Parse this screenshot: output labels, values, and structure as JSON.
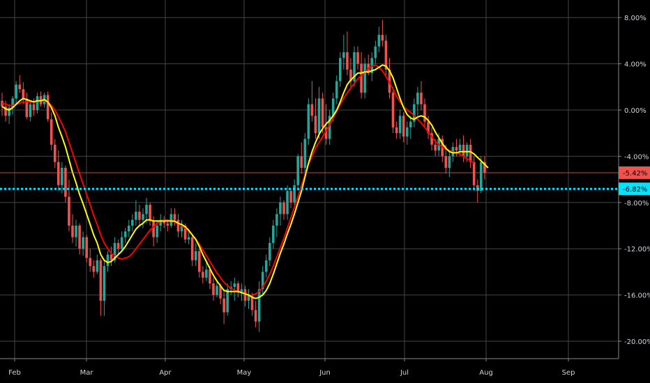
{
  "chart_data": {
    "type": "candlestick",
    "x_ticks": [
      "Feb",
      "Mar",
      "Apr",
      "May",
      "Jun",
      "Jul",
      "Aug",
      "Sep"
    ],
    "y_ticks": [
      "8.00%",
      "4.00%",
      "0.00%",
      "-4.00%",
      "-8.00%",
      "-12.00%",
      "-16.00%",
      "-20.00%"
    ],
    "ylim": [
      -22,
      9
    ],
    "y_unit": "%",
    "grid": true,
    "colors": {
      "up": "#26a69a",
      "down": "#ef5350",
      "ma_fast": "#ffff00",
      "ma_slow": "#ff0000",
      "background": "#000000",
      "grid": "#444444",
      "dotted_line": "#00e5ff",
      "axis_text": "#d1d4dc"
    },
    "candles": [
      {
        "o": 0.8,
        "h": 1.5,
        "l": -0.5,
        "c": 0.3
      },
      {
        "o": 0.3,
        "h": 0.8,
        "l": -1.0,
        "c": -0.5
      },
      {
        "o": -0.5,
        "h": 0.5,
        "l": -1.2,
        "c": 0.2
      },
      {
        "o": 0.2,
        "h": 1.2,
        "l": -0.4,
        "c": 1.0
      },
      {
        "o": 1.0,
        "h": 2.5,
        "l": 0.5,
        "c": 2.2
      },
      {
        "o": 2.2,
        "h": 3.0,
        "l": 1.5,
        "c": 1.8
      },
      {
        "o": 1.8,
        "h": 2.4,
        "l": 0.5,
        "c": 1.0
      },
      {
        "o": 1.0,
        "h": 1.5,
        "l": -0.8,
        "c": -0.6
      },
      {
        "o": -0.6,
        "h": 0.8,
        "l": -1.0,
        "c": 0.5
      },
      {
        "o": 0.5,
        "h": 1.0,
        "l": -0.5,
        "c": 0.0
      },
      {
        "o": 0.0,
        "h": 1.5,
        "l": -0.3,
        "c": 1.2
      },
      {
        "o": 1.2,
        "h": 1.6,
        "l": 0.3,
        "c": 0.5
      },
      {
        "o": 0.5,
        "h": 1.5,
        "l": 0.2,
        "c": 1.3
      },
      {
        "o": 1.3,
        "h": 1.6,
        "l": -1.0,
        "c": -0.8
      },
      {
        "o": -0.8,
        "h": -0.2,
        "l": -3.5,
        "c": -3.0
      },
      {
        "o": -3.0,
        "h": -2.5,
        "l": -5.0,
        "c": -4.5
      },
      {
        "o": -4.5,
        "h": -3.5,
        "l": -7.0,
        "c": -6.5
      },
      {
        "o": -6.5,
        "h": -4.5,
        "l": -7.2,
        "c": -5.0
      },
      {
        "o": -5.0,
        "h": -4.8,
        "l": -8.0,
        "c": -7.5
      },
      {
        "o": -7.5,
        "h": -6.0,
        "l": -10.5,
        "c": -10.0
      },
      {
        "o": -10.0,
        "h": -9.0,
        "l": -11.5,
        "c": -11.0
      },
      {
        "o": -11.0,
        "h": -9.5,
        "l": -11.8,
        "c": -10.0
      },
      {
        "o": -10.0,
        "h": -9.8,
        "l": -12.5,
        "c": -12.0
      },
      {
        "o": -12.0,
        "h": -10.5,
        "l": -12.6,
        "c": -11.0
      },
      {
        "o": -11.0,
        "h": -10.8,
        "l": -13.2,
        "c": -12.8
      },
      {
        "o": -12.8,
        "h": -12.0,
        "l": -14.0,
        "c": -13.5
      },
      {
        "o": -13.5,
        "h": -13.0,
        "l": -14.5,
        "c": -14.0
      },
      {
        "o": -14.0,
        "h": -12.5,
        "l": -14.2,
        "c": -13.0
      },
      {
        "o": -13.0,
        "h": -12.8,
        "l": -17.8,
        "c": -16.5
      },
      {
        "o": -16.5,
        "h": -13.0,
        "l": -17.8,
        "c": -13.5
      },
      {
        "o": -13.5,
        "h": -12.2,
        "l": -14.0,
        "c": -12.5
      },
      {
        "o": -12.5,
        "h": -11.8,
        "l": -13.5,
        "c": -13.0
      },
      {
        "o": -13.0,
        "h": -11.0,
        "l": -13.2,
        "c": -11.5
      },
      {
        "o": -11.5,
        "h": -11.2,
        "l": -12.5,
        "c": -12.0
      },
      {
        "o": -12.0,
        "h": -10.5,
        "l": -12.2,
        "c": -11.0
      },
      {
        "o": -11.0,
        "h": -10.2,
        "l": -11.5,
        "c": -10.5
      },
      {
        "o": -10.5,
        "h": -9.5,
        "l": -11.0,
        "c": -10.0
      },
      {
        "o": -10.0,
        "h": -9.0,
        "l": -10.5,
        "c": -9.5
      },
      {
        "o": -9.5,
        "h": -7.8,
        "l": -10.0,
        "c": -8.8
      },
      {
        "o": -8.8,
        "h": -8.2,
        "l": -10.0,
        "c": -9.5
      },
      {
        "o": -9.5,
        "h": -8.5,
        "l": -10.2,
        "c": -9.0
      },
      {
        "o": -9.0,
        "h": -7.6,
        "l": -9.8,
        "c": -8.2
      },
      {
        "o": -8.2,
        "h": -8.0,
        "l": -10.0,
        "c": -9.6
      },
      {
        "o": -9.6,
        "h": -9.2,
        "l": -11.8,
        "c": -11.0
      },
      {
        "o": -11.0,
        "h": -9.5,
        "l": -11.5,
        "c": -10.0
      },
      {
        "o": -10.0,
        "h": -9.0,
        "l": -10.5,
        "c": -9.5
      },
      {
        "o": -9.5,
        "h": -9.2,
        "l": -10.2,
        "c": -9.8
      },
      {
        "o": -9.8,
        "h": -9.5,
        "l": -10.5,
        "c": -10.0
      },
      {
        "o": -10.0,
        "h": -8.5,
        "l": -10.2,
        "c": -9.0
      },
      {
        "o": -9.0,
        "h": -8.5,
        "l": -10.0,
        "c": -9.5
      },
      {
        "o": -9.5,
        "h": -9.0,
        "l": -11.0,
        "c": -10.5
      },
      {
        "o": -10.5,
        "h": -9.5,
        "l": -11.0,
        "c": -10.0
      },
      {
        "o": -10.0,
        "h": -9.8,
        "l": -11.5,
        "c": -11.2
      },
      {
        "o": -11.2,
        "h": -10.5,
        "l": -11.6,
        "c": -11.0
      },
      {
        "o": -11.0,
        "h": -10.8,
        "l": -13.5,
        "c": -13.0
      },
      {
        "o": -13.0,
        "h": -11.5,
        "l": -13.5,
        "c": -12.2
      },
      {
        "o": -12.2,
        "h": -12.0,
        "l": -14.5,
        "c": -14.0
      },
      {
        "o": -14.0,
        "h": -13.5,
        "l": -15.0,
        "c": -14.5
      },
      {
        "o": -14.5,
        "h": -13.0,
        "l": -14.8,
        "c": -13.8
      },
      {
        "o": -13.8,
        "h": -13.5,
        "l": -15.5,
        "c": -15.0
      },
      {
        "o": -15.0,
        "h": -14.5,
        "l": -16.5,
        "c": -16.0
      },
      {
        "o": -16.0,
        "h": -14.8,
        "l": -16.2,
        "c": -15.2
      },
      {
        "o": -15.2,
        "h": -15.0,
        "l": -16.8,
        "c": -16.3
      },
      {
        "o": -16.3,
        "h": -15.5,
        "l": -18.5,
        "c": -17.5
      },
      {
        "o": -17.5,
        "h": -15.0,
        "l": -17.8,
        "c": -15.5
      },
      {
        "o": -15.5,
        "h": -14.8,
        "l": -16.0,
        "c": -15.3
      },
      {
        "o": -15.3,
        "h": -14.5,
        "l": -16.5,
        "c": -15.0
      },
      {
        "o": -15.0,
        "h": -14.8,
        "l": -16.2,
        "c": -15.8
      },
      {
        "o": -15.8,
        "h": -15.0,
        "l": -16.5,
        "c": -15.5
      },
      {
        "o": -15.5,
        "h": -15.2,
        "l": -17.0,
        "c": -16.5
      },
      {
        "o": -16.5,
        "h": -15.5,
        "l": -17.2,
        "c": -16.0
      },
      {
        "o": -16.0,
        "h": -15.8,
        "l": -17.8,
        "c": -17.3
      },
      {
        "o": -17.3,
        "h": -16.5,
        "l": -18.8,
        "c": -18.3
      },
      {
        "o": -18.3,
        "h": -14.8,
        "l": -19.2,
        "c": -15.5
      },
      {
        "o": -15.5,
        "h": -13.5,
        "l": -16.0,
        "c": -14.0
      },
      {
        "o": -14.0,
        "h": -12.5,
        "l": -14.5,
        "c": -13.0
      },
      {
        "o": -13.0,
        "h": -11.0,
        "l": -13.5,
        "c": -11.5
      },
      {
        "o": -11.5,
        "h": -9.5,
        "l": -12.0,
        "c": -10.0
      },
      {
        "o": -10.0,
        "h": -8.5,
        "l": -11.0,
        "c": -9.0
      },
      {
        "o": -9.0,
        "h": -7.5,
        "l": -10.0,
        "c": -8.0
      },
      {
        "o": -8.0,
        "h": -7.8,
        "l": -9.5,
        "c": -9.0
      },
      {
        "o": -9.0,
        "h": -6.5,
        "l": -9.5,
        "c": -7.0
      },
      {
        "o": -7.0,
        "h": -6.8,
        "l": -8.5,
        "c": -8.0
      },
      {
        "o": -8.0,
        "h": -6.0,
        "l": -8.5,
        "c": -6.5
      },
      {
        "o": -6.5,
        "h": -3.8,
        "l": -7.0,
        "c": -4.0
      },
      {
        "o": -4.0,
        "h": -2.8,
        "l": -5.5,
        "c": -5.0
      },
      {
        "o": -5.0,
        "h": -2.0,
        "l": -5.5,
        "c": -2.5
      },
      {
        "o": -2.5,
        "h": 1.0,
        "l": -3.0,
        "c": 0.5
      },
      {
        "o": 0.5,
        "h": 2.5,
        "l": -1.0,
        "c": -0.5
      },
      {
        "o": -0.5,
        "h": 1.0,
        "l": -2.5,
        "c": -2.0
      },
      {
        "o": -2.0,
        "h": 2.0,
        "l": -2.5,
        "c": 1.0
      },
      {
        "o": 1.0,
        "h": 1.5,
        "l": -2.0,
        "c": -1.5
      },
      {
        "o": -1.5,
        "h": 0.5,
        "l": -3.0,
        "c": -2.5
      },
      {
        "o": -2.5,
        "h": 0.0,
        "l": -3.0,
        "c": -0.5
      },
      {
        "o": -0.5,
        "h": 1.5,
        "l": -1.0,
        "c": 1.0
      },
      {
        "o": 1.0,
        "h": 3.0,
        "l": 0.5,
        "c": 2.5
      },
      {
        "o": 2.5,
        "h": 5.0,
        "l": 2.0,
        "c": 4.5
      },
      {
        "o": 4.5,
        "h": 6.5,
        "l": 3.5,
        "c": 5.0
      },
      {
        "o": 5.0,
        "h": 6.8,
        "l": 3.0,
        "c": 3.5
      },
      {
        "o": 3.5,
        "h": 4.5,
        "l": 2.0,
        "c": 2.5
      },
      {
        "o": 2.5,
        "h": 5.5,
        "l": 2.0,
        "c": 5.0
      },
      {
        "o": 5.0,
        "h": 5.5,
        "l": 3.5,
        "c": 4.0
      },
      {
        "o": 4.0,
        "h": 5.0,
        "l": 1.0,
        "c": 1.5
      },
      {
        "o": 1.5,
        "h": 4.5,
        "l": 1.0,
        "c": 4.0
      },
      {
        "o": 4.0,
        "h": 4.8,
        "l": 3.0,
        "c": 3.2
      },
      {
        "o": 3.2,
        "h": 5.0,
        "l": 2.5,
        "c": 4.5
      },
      {
        "o": 4.5,
        "h": 6.0,
        "l": 4.0,
        "c": 5.5
      },
      {
        "o": 5.5,
        "h": 7.2,
        "l": 5.0,
        "c": 6.5
      },
      {
        "o": 6.5,
        "h": 7.8,
        "l": 5.5,
        "c": 6.0
      },
      {
        "o": 6.0,
        "h": 6.5,
        "l": 3.0,
        "c": 3.5
      },
      {
        "o": 3.5,
        "h": 4.5,
        "l": 1.0,
        "c": 1.5
      },
      {
        "o": 1.5,
        "h": 2.0,
        "l": -2.0,
        "c": -1.5
      },
      {
        "o": -1.5,
        "h": -1.0,
        "l": -2.5,
        "c": -2.0
      },
      {
        "o": -2.0,
        "h": 0.0,
        "l": -2.5,
        "c": -0.5
      },
      {
        "o": -0.5,
        "h": -0.2,
        "l": -2.8,
        "c": -2.3
      },
      {
        "o": -2.3,
        "h": -1.0,
        "l": -3.0,
        "c": -1.5
      },
      {
        "o": -1.5,
        "h": -0.5,
        "l": -2.5,
        "c": -1.0
      },
      {
        "o": -1.0,
        "h": 1.0,
        "l": -1.5,
        "c": 0.5
      },
      {
        "o": 0.5,
        "h": 2.0,
        "l": -0.5,
        "c": 1.5
      },
      {
        "o": 1.5,
        "h": 2.5,
        "l": 0.0,
        "c": 0.5
      },
      {
        "o": 0.5,
        "h": 1.0,
        "l": -1.5,
        "c": -1.0
      },
      {
        "o": -1.0,
        "h": -0.5,
        "l": -2.5,
        "c": -2.0
      },
      {
        "o": -2.0,
        "h": -1.5,
        "l": -3.5,
        "c": -3.0
      },
      {
        "o": -3.0,
        "h": -2.5,
        "l": -4.0,
        "c": -3.5
      },
      {
        "o": -3.5,
        "h": -2.0,
        "l": -4.0,
        "c": -2.5
      },
      {
        "o": -2.5,
        "h": -2.2,
        "l": -4.5,
        "c": -4.0
      },
      {
        "o": -4.0,
        "h": -3.0,
        "l": -5.5,
        "c": -5.0
      },
      {
        "o": -5.0,
        "h": -3.5,
        "l": -5.8,
        "c": -4.0
      },
      {
        "o": -4.0,
        "h": -2.8,
        "l": -4.5,
        "c": -3.2
      },
      {
        "o": -3.2,
        "h": -2.5,
        "l": -4.0,
        "c": -3.5
      },
      {
        "o": -3.5,
        "h": -2.5,
        "l": -4.0,
        "c": -3.0
      },
      {
        "o": -3.0,
        "h": -2.2,
        "l": -4.5,
        "c": -4.0
      },
      {
        "o": -4.0,
        "h": -2.8,
        "l": -4.5,
        "c": -3.0
      },
      {
        "o": -3.0,
        "h": -2.5,
        "l": -5.0,
        "c": -4.5
      },
      {
        "o": -4.5,
        "h": -4.0,
        "l": -7.0,
        "c": -6.5
      },
      {
        "o": -6.5,
        "h": -6.0,
        "l": -8.0,
        "c": -7.0
      },
      {
        "o": -7.0,
        "h": -4.0,
        "l": -7.2,
        "c": -4.5
      },
      {
        "o": -4.5,
        "h": -4.0,
        "l": -6.0,
        "c": -5.4
      }
    ],
    "ma_fast": [
      0.3,
      0.1,
      0.0,
      0.2,
      0.5,
      0.8,
      1.0,
      0.9,
      0.8,
      0.7,
      0.8,
      0.8,
      0.9,
      0.7,
      0.2,
      -0.5,
      -1.5,
      -2.3,
      -3.2,
      -4.3,
      -5.4,
      -6.3,
      -7.3,
      -8.1,
      -9.0,
      -9.9,
      -10.8,
      -11.5,
      -12.5,
      -13.0,
      -13.2,
      -13.1,
      -12.8,
      -12.5,
      -12.2,
      -11.8,
      -11.3,
      -10.8,
      -10.3,
      -10.0,
      -9.8,
      -9.5,
      -9.5,
      -9.6,
      -9.6,
      -9.6,
      -9.6,
      -9.6,
      -9.6,
      -9.6,
      -9.8,
      -9.9,
      -10.1,
      -10.4,
      -10.8,
      -11.2,
      -11.8,
      -12.5,
      -13.1,
      -13.7,
      -14.3,
      -14.8,
      -15.2,
      -15.6,
      -15.7,
      -15.7,
      -15.7,
      -15.7,
      -15.8,
      -15.9,
      -16.0,
      -16.2,
      -16.3,
      -16.2,
      -16.0,
      -15.6,
      -15.0,
      -14.2,
      -13.3,
      -12.4,
      -11.6,
      -10.7,
      -9.9,
      -9.0,
      -8.0,
      -7.0,
      -5.8,
      -4.6,
      -3.6,
      -2.8,
      -2.1,
      -1.6,
      -1.2,
      -0.9,
      -0.5,
      0.0,
      0.7,
      1.5,
      2.2,
      2.6,
      2.9,
      3.2,
      3.2,
      3.3,
      3.3,
      3.4,
      3.5,
      3.7,
      3.9,
      3.8,
      3.4,
      2.8,
      1.9,
      1.0,
      0.2,
      -0.4,
      -0.7,
      -0.8,
      -0.6,
      -0.5,
      -0.6,
      -0.9,
      -1.3,
      -1.9,
      -2.4,
      -2.9,
      -3.3,
      -3.6,
      -3.7,
      -3.7,
      -3.6,
      -3.6,
      -3.6,
      -3.6,
      -3.8,
      -4.1,
      -4.4,
      -4.7,
      -5.0
    ],
    "ma_slow": [
      0.6,
      0.5,
      0.4,
      0.4,
      0.5,
      0.6,
      0.7,
      0.7,
      0.7,
      0.7,
      0.8,
      0.8,
      0.8,
      0.7,
      0.4,
      0.0,
      -0.6,
      -1.2,
      -1.9,
      -2.8,
      -3.7,
      -4.6,
      -5.5,
      -6.4,
      -7.3,
      -8.2,
      -9.1,
      -9.9,
      -10.8,
      -11.5,
      -12.0,
      -12.4,
      -12.6,
      -12.8,
      -12.9,
      -12.8,
      -12.7,
      -12.4,
      -12.0,
      -11.6,
      -11.2,
      -10.8,
      -10.4,
      -10.1,
      -9.8,
      -9.6,
      -9.5,
      -9.5,
      -9.6,
      -9.7,
      -9.8,
      -10.0,
      -10.2,
      -10.5,
      -10.8,
      -11.2,
      -11.6,
      -12.1,
      -12.6,
      -13.1,
      -13.6,
      -14.1,
      -14.5,
      -14.9,
      -15.2,
      -15.4,
      -15.6,
      -15.7,
      -15.8,
      -15.9,
      -16.0,
      -16.0,
      -15.9,
      -15.7,
      -15.3,
      -14.8,
      -14.2,
      -13.5,
      -12.7,
      -11.9,
      -11.1,
      -10.2,
      -9.3,
      -8.4,
      -7.5,
      -6.5,
      -5.6,
      -4.7,
      -4.0,
      -3.3,
      -2.8,
      -2.3,
      -1.8,
      -1.3,
      -0.7,
      -0.1,
      0.5,
      1.0,
      1.5,
      1.9,
      2.3,
      2.7,
      3.0,
      3.3,
      3.6,
      3.8,
      3.9,
      3.7,
      3.4,
      2.9,
      2.4,
      1.8,
      1.2,
      0.7,
      0.3,
      0.0,
      -0.2,
      -0.5,
      -0.8,
      -1.1,
      -1.5,
      -1.9,
      -2.3,
      -2.7,
      -3.0,
      -3.2,
      -3.4,
      -3.5,
      -3.6,
      -3.7,
      -3.8,
      -4.0,
      -4.2,
      -4.4,
      -4.6
    ],
    "last_value": -5.42,
    "last_value_label": "-5.42%",
    "dotted_line_value": -6.82,
    "dotted_line_label": "-6.82%"
  }
}
